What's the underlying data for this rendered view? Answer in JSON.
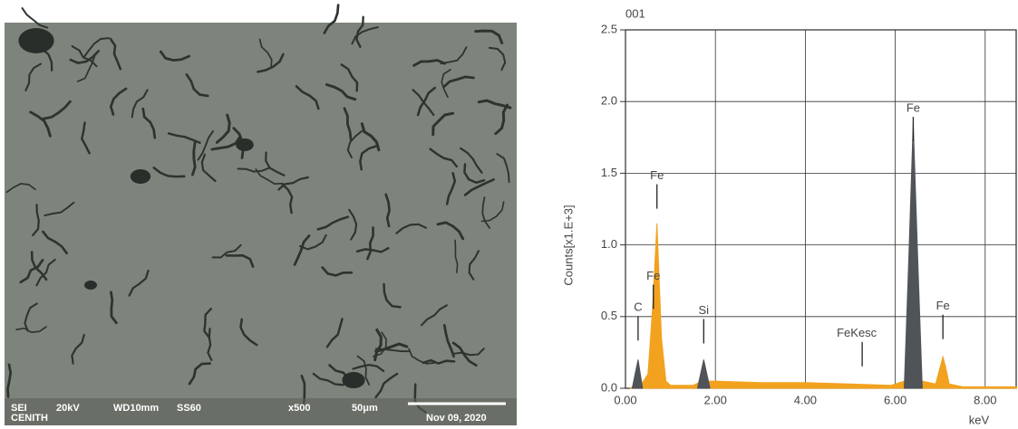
{
  "sem_image": {
    "info": [
      "SEI",
      "20kV",
      "WD10mm",
      "SS60",
      "x500",
      "50μm",
      "Nov 09, 2020"
    ],
    "operator": "CENITH"
  },
  "chart_data": {
    "type": "area",
    "label": "001",
    "y_label": "Counts[x1.E+3]",
    "x_label": "keV",
    "xlim": [
      0,
      8.73
    ],
    "ylim": [
      0,
      2.5
    ],
    "xticks": [
      {
        "value": 0,
        "label": "0.00"
      },
      {
        "value": 2,
        "label": "2.00"
      },
      {
        "value": 4,
        "label": "4.00"
      },
      {
        "value": 6,
        "label": "6.00"
      },
      {
        "value": 8,
        "label": "8.00"
      }
    ],
    "yticks": [
      {
        "value": 0,
        "label": "0.0"
      },
      {
        "value": 0.5,
        "label": "0.5"
      },
      {
        "value": 1,
        "label": "1.0"
      },
      {
        "value": 1.5,
        "label": "1.5"
      },
      {
        "value": 2,
        "label": "2.0"
      },
      {
        "value": 2.5,
        "label": "2.5"
      }
    ],
    "grid": true,
    "series": [
      {
        "color": "#f2a21e",
        "x": [
          0.1,
          0.2,
          0.28,
          0.36,
          0.5,
          0.6,
          0.7,
          0.8,
          0.9,
          1.0,
          1.5,
          1.7,
          1.8,
          2.0,
          3.0,
          4.0,
          5.0,
          5.9,
          6.2,
          6.4,
          6.6,
          6.9,
          7.0,
          7.06,
          7.12,
          7.2,
          7.5,
          8.0,
          8.7
        ],
        "values": [
          0,
          0.02,
          0.05,
          0.03,
          0.1,
          0.55,
          1.15,
          0.35,
          0.05,
          0.02,
          0.02,
          0.05,
          0.05,
          0.05,
          0.04,
          0.04,
          0.03,
          0.02,
          0.05,
          0.05,
          0.05,
          0.03,
          0.15,
          0.22,
          0.15,
          0.03,
          0.01,
          0.01,
          0.01
        ]
      },
      {
        "color": "#505458",
        "x": [
          0.15,
          0.28,
          0.38,
          1.0,
          1.6,
          1.74,
          1.88,
          4.0,
          6.2,
          6.3,
          6.4,
          6.5,
          6.6
        ],
        "values": [
          0,
          0.2,
          0,
          null,
          0,
          0.2,
          0,
          null,
          0,
          0.9,
          1.85,
          0.9,
          0
        ]
      }
    ],
    "annotations": [
      {
        "text": "C",
        "x": 0.28,
        "y": 0.56
      },
      {
        "text": "Fe",
        "x": 0.62,
        "y": 0.78
      },
      {
        "text": "Fe",
        "x": 0.7,
        "y": 1.48
      },
      {
        "text": "Si",
        "x": 1.74,
        "y": 0.54
      },
      {
        "text": "FeKesc",
        "x": 4.7,
        "y": 0.38
      },
      {
        "text": "Fe",
        "x": 6.4,
        "y": 1.95
      },
      {
        "text": "Fe",
        "x": 7.06,
        "y": 0.57
      }
    ]
  }
}
